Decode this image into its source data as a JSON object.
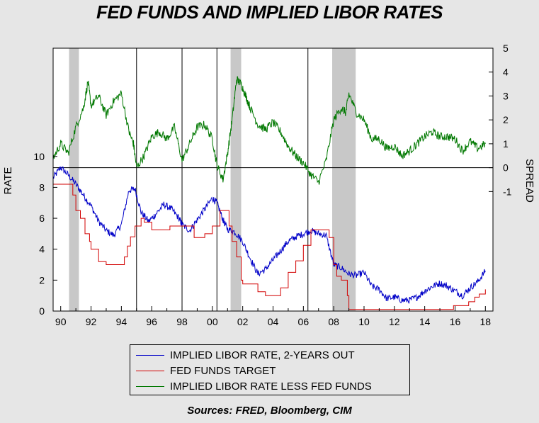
{
  "chart_data": {
    "type": "line",
    "title": "FED FUNDS AND IMPLIED LIBOR RATES",
    "source": "Sources:  FRED, Bloomberg, CIM",
    "x_tick_labels": [
      "90",
      "92",
      "94",
      "96",
      "98",
      "00",
      "02",
      "04",
      "06",
      "08",
      "10",
      "12",
      "14",
      "16",
      "18"
    ],
    "xlim": [
      1989.5,
      2018.5
    ],
    "left_axis": {
      "label": "RATE",
      "ylim": [
        0,
        17
      ],
      "ticks": [
        0,
        2,
        4,
        6,
        8,
        10
      ]
    },
    "right_axis": {
      "label": "SPREAD",
      "ylim": [
        -6,
        5
      ],
      "ticks": [
        -1,
        0,
        1,
        2,
        3,
        4,
        5
      ],
      "tick_labels": [
        "-1",
        "0",
        "1",
        "2",
        "3",
        "4",
        "5"
      ]
    },
    "recessions": [
      [
        1990.55,
        1991.2
      ],
      [
        2001.2,
        2001.9
      ],
      [
        2007.9,
        2009.45
      ]
    ],
    "vertical_markers": [
      1995.0,
      1998.0,
      2000.3,
      2006.3
    ],
    "legend_position": "below",
    "series": [
      {
        "name": "IMPLIED LIBOR RATE, 2-YEARS OUT",
        "color": "#0000c8",
        "axis": "left",
        "x": [
          1989.5,
          1990.0,
          1990.5,
          1991.0,
          1991.5,
          1992.0,
          1992.5,
          1993.0,
          1993.5,
          1994.0,
          1994.5,
          1994.9,
          1995.3,
          1995.8,
          1996.3,
          1996.8,
          1997.3,
          1997.8,
          1998.0,
          1998.5,
          1999.0,
          1999.5,
          2000.0,
          2000.3,
          2000.7,
          2001.0,
          2001.5,
          2002.0,
          2002.5,
          2003.0,
          2003.5,
          2004.0,
          2004.5,
          2005.0,
          2005.5,
          2006.0,
          2006.5,
          2007.0,
          2007.5,
          2008.0,
          2008.5,
          2009.0,
          2009.5,
          2010.0,
          2010.5,
          2011.0,
          2011.5,
          2012.0,
          2012.5,
          2013.0,
          2013.5,
          2014.0,
          2014.5,
          2015.0,
          2015.5,
          2016.0,
          2016.5,
          2017.0,
          2017.5,
          2018.0
        ],
        "values": [
          8.6,
          9.3,
          8.8,
          8.2,
          7.5,
          6.8,
          5.8,
          5.2,
          4.9,
          5.6,
          7.8,
          7.9,
          6.4,
          5.8,
          6.3,
          6.9,
          6.6,
          6.0,
          5.6,
          5.2,
          5.9,
          6.6,
          7.3,
          7.0,
          5.9,
          5.3,
          5.1,
          4.5,
          3.4,
          2.4,
          2.7,
          3.3,
          3.9,
          4.5,
          4.8,
          5.0,
          5.2,
          5.0,
          4.9,
          3.0,
          2.8,
          2.4,
          2.3,
          2.5,
          1.6,
          1.4,
          0.8,
          0.9,
          0.7,
          0.7,
          0.9,
          1.3,
          1.6,
          1.8,
          1.6,
          1.3,
          1.0,
          1.5,
          1.9,
          2.6
        ]
      },
      {
        "name": "FED FUNDS TARGET",
        "color": "#d20000",
        "axis": "left",
        "x": [
          1989.5,
          1990.5,
          1990.8,
          1991.0,
          1991.3,
          1991.6,
          1991.9,
          1992.0,
          1992.5,
          1993.0,
          1993.5,
          1994.0,
          1994.2,
          1994.4,
          1994.6,
          1994.9,
          1995.3,
          1995.5,
          1996.0,
          1996.5,
          1997.0,
          1997.2,
          1998.0,
          1998.5,
          1998.8,
          1999.0,
          1999.5,
          2000.0,
          2000.5,
          2000.9,
          2001.1,
          2001.3,
          2001.6,
          2001.9,
          2002.0,
          2002.5,
          2003.0,
          2003.5,
          2004.0,
          2004.5,
          2005.0,
          2005.5,
          2006.0,
          2006.5,
          2007.0,
          2007.5,
          2007.7,
          2008.0,
          2008.2,
          2008.5,
          2008.9,
          2009.0,
          2010.0,
          2011.0,
          2012.0,
          2013.0,
          2014.0,
          2015.0,
          2015.9,
          2016.9,
          2017.3,
          2017.6,
          2018.0
        ],
        "values": [
          8.2,
          8.2,
          7.5,
          6.5,
          6.0,
          5.0,
          4.5,
          4.0,
          3.2,
          3.0,
          3.0,
          3.0,
          3.5,
          4.2,
          4.8,
          5.5,
          6.0,
          5.75,
          5.25,
          5.25,
          5.25,
          5.5,
          5.5,
          5.5,
          4.75,
          4.75,
          5.0,
          5.5,
          6.5,
          6.5,
          5.5,
          4.5,
          3.5,
          2.0,
          1.75,
          1.75,
          1.25,
          1.0,
          1.0,
          1.5,
          2.5,
          3.25,
          4.25,
          5.25,
          5.25,
          5.25,
          4.75,
          3.0,
          2.25,
          2.0,
          1.0,
          0.1,
          0.1,
          0.1,
          0.1,
          0.1,
          0.1,
          0.1,
          0.35,
          0.6,
          0.9,
          1.1,
          1.4
        ]
      },
      {
        "name": "IMPLIED LIBOR RATE LESS FED FUNDS",
        "color": "#007800",
        "axis": "right",
        "x": [
          1989.5,
          1990.0,
          1990.5,
          1991.0,
          1991.5,
          1991.8,
          1992.0,
          1992.5,
          1993.0,
          1993.5,
          1994.0,
          1994.5,
          1994.8,
          1995.0,
          1995.5,
          1996.0,
          1996.5,
          1997.0,
          1997.5,
          1998.0,
          1998.5,
          1999.0,
          1999.5,
          2000.0,
          2000.3,
          2000.7,
          2001.0,
          2001.3,
          2001.6,
          2001.9,
          2002.2,
          2002.5,
          2003.0,
          2003.5,
          2004.0,
          2004.5,
          2005.0,
          2005.5,
          2006.0,
          2006.5,
          2007.0,
          2007.5,
          2008.0,
          2008.5,
          2008.8,
          2009.0,
          2009.5,
          2010.0,
          2010.5,
          2011.0,
          2011.5,
          2012.0,
          2012.5,
          2013.0,
          2013.5,
          2014.0,
          2014.5,
          2015.0,
          2015.5,
          2016.0,
          2016.5,
          2017.0,
          2017.5,
          2018.0
        ],
        "values": [
          0.4,
          1.0,
          0.6,
          1.7,
          2.5,
          3.6,
          2.6,
          3.0,
          2.2,
          2.8,
          3.1,
          1.5,
          1.0,
          0.0,
          0.5,
          1.3,
          1.5,
          1.2,
          1.7,
          0.3,
          1.0,
          1.7,
          1.8,
          1.2,
          0.1,
          -0.5,
          0.6,
          2.0,
          3.7,
          3.5,
          3.0,
          2.5,
          1.8,
          1.6,
          1.9,
          1.5,
          0.9,
          0.5,
          0.2,
          -0.3,
          -0.6,
          0.3,
          2.0,
          2.5,
          2.3,
          3.1,
          2.3,
          2.0,
          1.2,
          1.2,
          0.8,
          0.9,
          0.5,
          0.7,
          1.0,
          1.3,
          1.5,
          1.3,
          1.3,
          1.2,
          0.7,
          1.1,
          0.8,
          1.0
        ]
      }
    ]
  }
}
